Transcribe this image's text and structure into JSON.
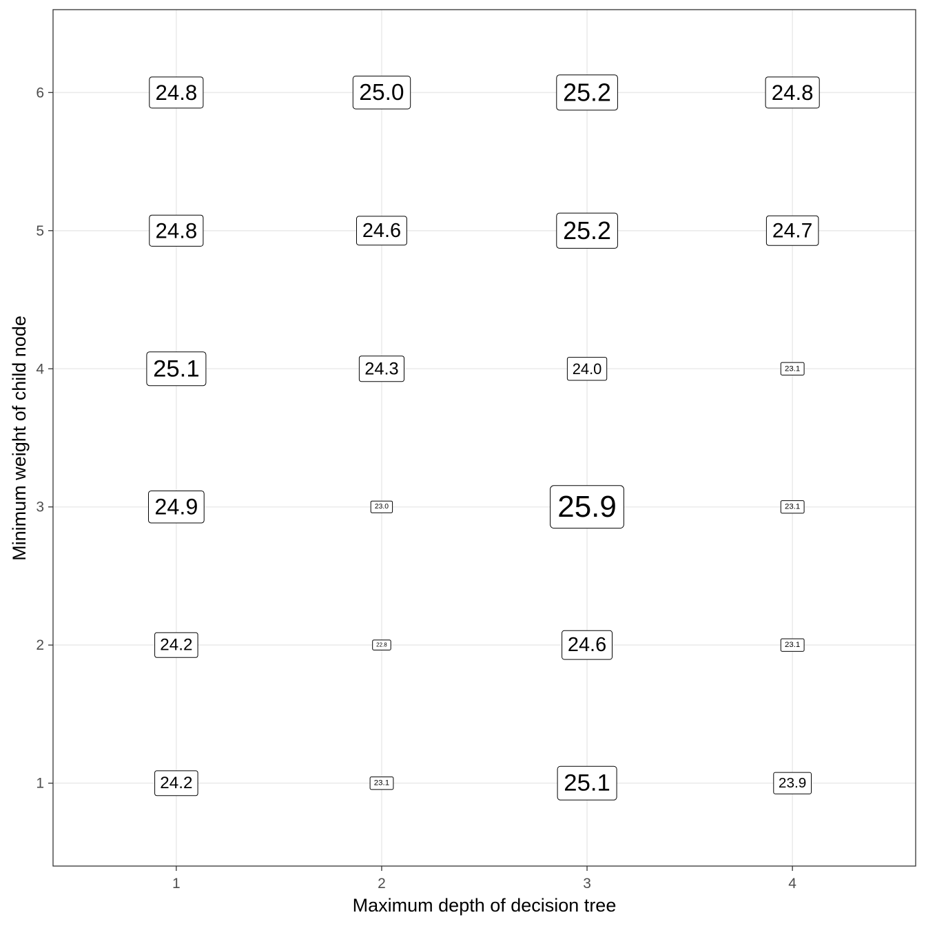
{
  "chart_data": {
    "type": "table",
    "title": "",
    "xlabel": "Maximum depth of decision tree",
    "ylabel": "Minimum weight of child node",
    "x_ticks": [
      "1",
      "2",
      "3",
      "4"
    ],
    "y_ticks": [
      "1",
      "2",
      "3",
      "4",
      "5",
      "6"
    ],
    "xlim": [
      0.4,
      4.6
    ],
    "ylim": [
      0.4,
      6.6
    ],
    "grid": true,
    "value_format": "one decimal",
    "size_encodes_value": true,
    "cells": [
      {
        "x": 1,
        "y": 6,
        "value": 24.8,
        "label": "24.8"
      },
      {
        "x": 2,
        "y": 6,
        "value": 25.0,
        "label": "25.0"
      },
      {
        "x": 3,
        "y": 6,
        "value": 25.2,
        "label": "25.2"
      },
      {
        "x": 4,
        "y": 6,
        "value": 24.8,
        "label": "24.8"
      },
      {
        "x": 1,
        "y": 5,
        "value": 24.8,
        "label": "24.8"
      },
      {
        "x": 2,
        "y": 5,
        "value": 24.6,
        "label": "24.6"
      },
      {
        "x": 3,
        "y": 5,
        "value": 25.2,
        "label": "25.2"
      },
      {
        "x": 4,
        "y": 5,
        "value": 24.7,
        "label": "24.7"
      },
      {
        "x": 1,
        "y": 4,
        "value": 25.1,
        "label": "25.1"
      },
      {
        "x": 2,
        "y": 4,
        "value": 24.3,
        "label": "24.3"
      },
      {
        "x": 3,
        "y": 4,
        "value": 24.0,
        "label": "24.0"
      },
      {
        "x": 4,
        "y": 4,
        "value": 23.1,
        "label": "23.1"
      },
      {
        "x": 1,
        "y": 3,
        "value": 24.9,
        "label": "24.9"
      },
      {
        "x": 2,
        "y": 3,
        "value": 23.0,
        "label": "23.0"
      },
      {
        "x": 3,
        "y": 3,
        "value": 25.9,
        "label": "25.9"
      },
      {
        "x": 4,
        "y": 3,
        "value": 23.1,
        "label": "23.1"
      },
      {
        "x": 1,
        "y": 2,
        "value": 24.2,
        "label": "24.2"
      },
      {
        "x": 2,
        "y": 2,
        "value": 22.8,
        "label": "22.8"
      },
      {
        "x": 3,
        "y": 2,
        "value": 24.6,
        "label": "24.6"
      },
      {
        "x": 4,
        "y": 2,
        "value": 23.1,
        "label": "23.1"
      },
      {
        "x": 1,
        "y": 1,
        "value": 24.2,
        "label": "24.2"
      },
      {
        "x": 2,
        "y": 1,
        "value": 23.1,
        "label": "23.1"
      },
      {
        "x": 3,
        "y": 1,
        "value": 25.1,
        "label": "25.1"
      },
      {
        "x": 4,
        "y": 1,
        "value": 23.9,
        "label": "23.9"
      }
    ]
  }
}
